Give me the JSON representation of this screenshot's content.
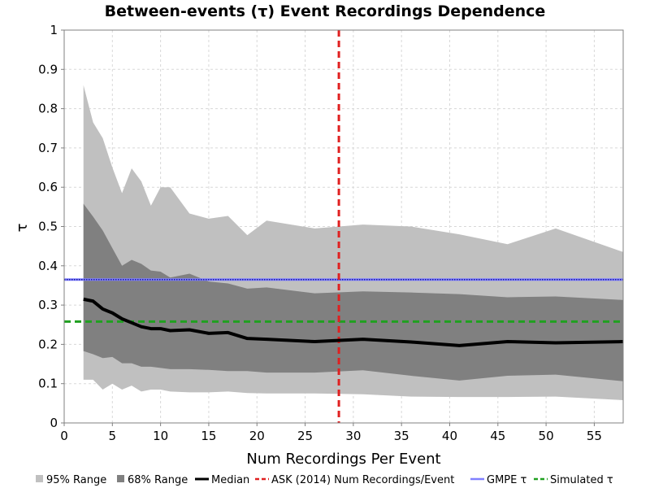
{
  "chart_data": {
    "type": "area",
    "title": "Between-events (τ) Event Recordings Dependence",
    "xlabel": "Num Recordings Per Event",
    "ylabel": "τ",
    "xlim": [
      0,
      58
    ],
    "ylim": [
      0,
      1
    ],
    "xticks": [
      0,
      5,
      10,
      15,
      20,
      25,
      30,
      35,
      40,
      45,
      50,
      55
    ],
    "yticks": [
      0,
      0.1,
      0.2,
      0.3,
      0.4,
      0.5,
      0.6,
      0.7,
      0.8,
      0.9,
      1
    ],
    "grid": true,
    "legend_position": "bottom",
    "x": [
      2,
      3,
      4,
      5,
      6,
      7,
      8,
      9,
      10,
      11,
      13,
      15,
      17,
      19,
      21,
      26,
      31,
      36,
      41,
      46,
      51,
      58
    ],
    "series": [
      {
        "name": "95% Range",
        "kind": "band",
        "color": "#c0c0c0",
        "lower": [
          0.11,
          0.11,
          0.085,
          0.1,
          0.085,
          0.095,
          0.08,
          0.085,
          0.085,
          0.08,
          0.078,
          0.078,
          0.08,
          0.076,
          0.075,
          0.075,
          0.073,
          0.067,
          0.066,
          0.066,
          0.067,
          0.058
        ],
        "upper": [
          0.86,
          0.765,
          0.725,
          0.65,
          0.585,
          0.648,
          0.615,
          0.553,
          0.6,
          0.6,
          0.533,
          0.52,
          0.527,
          0.478,
          0.515,
          0.495,
          0.505,
          0.5,
          0.48,
          0.455,
          0.495,
          0.435
        ]
      },
      {
        "name": "68% Range",
        "kind": "band",
        "color": "#808080",
        "lower": [
          0.183,
          0.175,
          0.165,
          0.168,
          0.152,
          0.152,
          0.143,
          0.143,
          0.14,
          0.137,
          0.137,
          0.135,
          0.132,
          0.132,
          0.128,
          0.128,
          0.134,
          0.12,
          0.108,
          0.12,
          0.123,
          0.106
        ],
        "upper": [
          0.558,
          0.525,
          0.49,
          0.445,
          0.4,
          0.415,
          0.405,
          0.388,
          0.385,
          0.37,
          0.38,
          0.36,
          0.355,
          0.342,
          0.345,
          0.33,
          0.335,
          0.332,
          0.328,
          0.32,
          0.322,
          0.313
        ]
      },
      {
        "name": "Median",
        "kind": "line",
        "color": "#000000",
        "values": [
          0.315,
          0.31,
          0.29,
          0.28,
          0.265,
          0.255,
          0.245,
          0.24,
          0.24,
          0.235,
          0.237,
          0.228,
          0.23,
          0.215,
          0.213,
          0.207,
          0.213,
          0.206,
          0.197,
          0.207,
          0.204,
          0.207
        ]
      },
      {
        "name": "ASK (2014) Num Recordings/Event",
        "kind": "vline",
        "color": "#e02020",
        "x": 28.5
      },
      {
        "name": "GMPE τ",
        "kind": "hline",
        "color": "#8080ff",
        "y": 0.365
      },
      {
        "name": "Simulated τ",
        "kind": "hline",
        "color": "#20a020",
        "y": 0.258
      }
    ]
  }
}
